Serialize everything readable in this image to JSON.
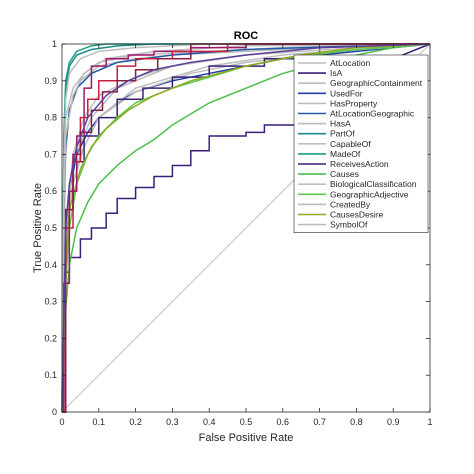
{
  "chart_data": {
    "type": "line",
    "title": "ROC",
    "xlabel": "False Positive Rate",
    "ylabel": "True Positive Rate",
    "xlim": [
      0,
      1
    ],
    "ylim": [
      0,
      1
    ],
    "xticks": [
      "0",
      "0.1",
      "0.2",
      "0.3",
      "0.4",
      "0.5",
      "0.6",
      "0.7",
      "0.8",
      "0.9",
      "1"
    ],
    "yticks": [
      "0",
      "0.1",
      "0.2",
      "0.3",
      "0.4",
      "0.5",
      "0.6",
      "0.7",
      "0.8",
      "0.9",
      "1"
    ],
    "grid": false,
    "legend_position": "top-right",
    "reference_line": {
      "x": [
        0,
        1
      ],
      "y": [
        0,
        1
      ],
      "color": "#c8c8c8"
    },
    "series": [
      {
        "name": "AtLocation",
        "color": "#bdbdbd",
        "x": [
          0,
          0.005,
          0.01,
          0.02,
          0.05,
          0.1,
          0.2,
          0.3,
          0.5,
          0.7,
          1
        ],
        "y": [
          0,
          0.45,
          0.7,
          0.82,
          0.9,
          0.94,
          0.96,
          0.97,
          0.98,
          0.99,
          1
        ]
      },
      {
        "name": "IsA",
        "color": "#3a1f7a",
        "x": [
          0,
          0.005,
          0.005,
          0.02,
          0.02,
          0.05,
          0.05,
          0.08,
          0.08,
          0.12,
          0.12,
          0.15,
          0.15,
          0.2,
          0.2,
          0.25,
          0.25,
          0.3,
          0.3,
          0.35,
          0.35,
          0.4,
          0.4,
          0.5,
          0.5,
          0.55,
          0.55,
          0.65,
          0.65,
          0.75,
          0.75,
          0.82,
          0.82,
          0.9,
          0.9,
          1
        ],
        "y": [
          0,
          0,
          0.38,
          0.38,
          0.42,
          0.42,
          0.47,
          0.47,
          0.5,
          0.5,
          0.54,
          0.54,
          0.58,
          0.58,
          0.61,
          0.61,
          0.64,
          0.64,
          0.67,
          0.67,
          0.71,
          0.71,
          0.75,
          0.75,
          0.76,
          0.76,
          0.78,
          0.78,
          0.8,
          0.8,
          0.81,
          0.81,
          0.87,
          0.87,
          0.96,
          1
        ]
      },
      {
        "name": "GeographicContainment",
        "color": "#bdbdbd",
        "x": [
          0,
          0.005,
          0.01,
          0.03,
          0.06,
          0.1,
          0.2,
          0.4,
          0.6,
          1
        ],
        "y": [
          0,
          0.6,
          0.8,
          0.88,
          0.92,
          0.95,
          0.97,
          0.98,
          0.99,
          1
        ]
      },
      {
        "name": "UsedFor",
        "color": "#1f3fa8",
        "x": [
          0,
          0.01,
          0.02,
          0.04,
          0.07,
          0.1,
          0.15,
          0.2,
          0.3,
          0.4,
          0.5,
          0.6,
          0.8,
          1
        ],
        "y": [
          0,
          0.45,
          0.6,
          0.7,
          0.76,
          0.8,
          0.84,
          0.87,
          0.9,
          0.92,
          0.94,
          0.96,
          0.98,
          1
        ]
      },
      {
        "name": "HasProperty",
        "color": "#bdbdbd",
        "x": [
          0,
          0.01,
          0.03,
          0.06,
          0.1,
          0.2,
          0.3,
          0.5,
          0.7,
          1
        ],
        "y": [
          0,
          0.5,
          0.7,
          0.8,
          0.86,
          0.91,
          0.94,
          0.97,
          0.99,
          1
        ]
      },
      {
        "name": "AtLocationGeographic",
        "color": "#1f5aa8",
        "x": [
          0,
          0.005,
          0.01,
          0.02,
          0.04,
          0.08,
          0.15,
          0.3,
          0.5,
          0.8,
          1
        ],
        "y": [
          0,
          0.55,
          0.72,
          0.82,
          0.88,
          0.92,
          0.95,
          0.97,
          0.985,
          0.995,
          1
        ]
      },
      {
        "name": "HasA",
        "color": "#bdbdbd",
        "x": [
          0,
          0.01,
          0.02,
          0.05,
          0.1,
          0.2,
          0.4,
          0.6,
          1
        ],
        "y": [
          0,
          0.4,
          0.58,
          0.7,
          0.8,
          0.88,
          0.94,
          0.97,
          1
        ]
      },
      {
        "name": "PartOf",
        "color": "#1f8a8a",
        "x": [
          0,
          0.005,
          0.01,
          0.02,
          0.04,
          0.08,
          0.15,
          0.25,
          0.4,
          1
        ],
        "y": [
          0,
          0.7,
          0.88,
          0.94,
          0.97,
          0.985,
          0.995,
          1,
          1,
          1
        ]
      },
      {
        "name": "CapableOf",
        "color": "#bdbdbd",
        "x": [
          0,
          0.01,
          0.03,
          0.06,
          0.1,
          0.2,
          0.35,
          0.5,
          0.75,
          1
        ],
        "y": [
          0,
          0.45,
          0.62,
          0.72,
          0.8,
          0.87,
          0.92,
          0.95,
          0.98,
          1
        ]
      },
      {
        "name": "MadeOf",
        "color": "#1aa085",
        "x": [
          0,
          0.005,
          0.01,
          0.02,
          0.04,
          0.08,
          0.12,
          0.2,
          1
        ],
        "y": [
          0,
          0.75,
          0.9,
          0.95,
          0.98,
          0.995,
          1,
          1,
          1
        ]
      },
      {
        "name": "ReceivesAction",
        "color": "#3a1f7a",
        "x": [
          0,
          0.01,
          0.01,
          0.03,
          0.03,
          0.06,
          0.06,
          0.1,
          0.1,
          0.15,
          0.15,
          0.22,
          0.22,
          0.3,
          0.3,
          0.4,
          0.4,
          0.55,
          0.55,
          0.7,
          0.7,
          1
        ],
        "y": [
          0,
          0,
          0.55,
          0.55,
          0.68,
          0.68,
          0.75,
          0.75,
          0.8,
          0.8,
          0.85,
          0.85,
          0.88,
          0.88,
          0.91,
          0.91,
          0.94,
          0.94,
          0.96,
          0.96,
          0.99,
          1
        ]
      },
      {
        "name": "Causes",
        "color": "#4cbf4a",
        "x": [
          0,
          0.01,
          0.02,
          0.04,
          0.07,
          0.1,
          0.15,
          0.2,
          0.25,
          0.3,
          0.4,
          0.5,
          0.6,
          0.75,
          0.9,
          1
        ],
        "y": [
          0,
          0.28,
          0.4,
          0.5,
          0.57,
          0.62,
          0.67,
          0.71,
          0.74,
          0.78,
          0.84,
          0.88,
          0.92,
          0.96,
          0.99,
          1
        ]
      },
      {
        "name": "BiologicalClassification",
        "color": "#bdbdbd",
        "x": [
          0,
          0.005,
          0.01,
          0.02,
          0.05,
          0.1,
          0.2,
          0.4,
          1
        ],
        "y": [
          0,
          0.65,
          0.85,
          0.92,
          0.96,
          0.98,
          0.99,
          1,
          1
        ]
      },
      {
        "name": "GeographicAdjective",
        "color": "#5cc84a",
        "x": [
          0,
          0.01,
          0.02,
          0.04,
          0.07,
          0.1,
          0.15,
          0.2,
          0.3,
          0.4,
          0.5,
          0.6,
          0.8,
          1
        ],
        "y": [
          0,
          0.35,
          0.5,
          0.62,
          0.7,
          0.75,
          0.8,
          0.84,
          0.88,
          0.91,
          0.94,
          0.96,
          0.985,
          1
        ]
      },
      {
        "name": "CreatedBy",
        "color": "#bdbdbd",
        "x": [
          0,
          0.01,
          0.03,
          0.08,
          0.15,
          0.3,
          0.5,
          0.8,
          1
        ],
        "y": [
          0,
          0.5,
          0.68,
          0.8,
          0.88,
          0.94,
          0.97,
          0.99,
          1
        ]
      },
      {
        "name": "CausesDesire",
        "color": "#8fa820",
        "x": [
          0,
          0.01,
          0.02,
          0.05,
          0.08,
          0.12,
          0.18,
          0.25,
          0.35,
          0.5,
          0.65,
          0.8,
          1
        ],
        "y": [
          0,
          0.4,
          0.55,
          0.66,
          0.72,
          0.77,
          0.82,
          0.86,
          0.9,
          0.94,
          0.97,
          0.99,
          1
        ]
      },
      {
        "name": "SymbolOf",
        "color": "#bdbdbd",
        "x": [
          0,
          0.005,
          0.01,
          0.03,
          0.06,
          0.12,
          0.25,
          0.5,
          1
        ],
        "y": [
          0,
          0.55,
          0.75,
          0.86,
          0.92,
          0.96,
          0.98,
          0.995,
          1
        ]
      },
      {
        "name": "",
        "color": "#a0186b",
        "x": [
          0,
          0.005,
          0.005,
          0.02,
          0.02,
          0.04,
          0.04,
          0.06,
          0.06,
          0.08,
          0.08,
          0.12,
          0.12,
          0.18,
          0.18,
          0.25,
          0.25,
          0.35,
          0.35,
          0.5,
          0.5,
          1
        ],
        "y": [
          0,
          0,
          0.35,
          0.35,
          0.6,
          0.6,
          0.75,
          0.75,
          0.88,
          0.88,
          0.94,
          0.94,
          0.96,
          0.96,
          0.97,
          0.97,
          0.98,
          0.98,
          0.99,
          0.99,
          1,
          1
        ]
      },
      {
        "name": "",
        "color": "#c81e3c",
        "x": [
          0,
          0.01,
          0.01,
          0.03,
          0.03,
          0.05,
          0.05,
          0.07,
          0.07,
          0.1,
          0.1,
          0.15,
          0.15,
          0.2,
          0.2,
          0.3,
          0.3,
          0.45,
          0.45,
          1
        ],
        "y": [
          0,
          0,
          0.5,
          0.5,
          0.68,
          0.68,
          0.8,
          0.8,
          0.85,
          0.85,
          0.9,
          0.9,
          0.94,
          0.94,
          0.96,
          0.96,
          0.98,
          0.98,
          1,
          1
        ]
      },
      {
        "name": "",
        "color": "#8b1e3f",
        "x": [
          0,
          0.01,
          0.01,
          0.03,
          0.03,
          0.05,
          0.05,
          0.08,
          0.08,
          0.11,
          0.11,
          0.15,
          0.15,
          0.2,
          0.2,
          0.26,
          0.26,
          0.35,
          0.35,
          1
        ],
        "y": [
          0,
          0,
          0.55,
          0.55,
          0.7,
          0.7,
          0.76,
          0.76,
          0.82,
          0.82,
          0.87,
          0.87,
          0.9,
          0.9,
          0.93,
          0.93,
          0.96,
          0.96,
          1,
          1
        ]
      },
      {
        "name": "",
        "color": "#5b3f9e",
        "x": [
          0,
          0.01,
          0.02,
          0.04,
          0.07,
          0.12,
          0.18,
          0.25,
          0.35,
          0.5,
          0.7,
          1
        ],
        "y": [
          0,
          0.5,
          0.62,
          0.72,
          0.8,
          0.86,
          0.9,
          0.93,
          0.95,
          0.97,
          0.99,
          1
        ]
      }
    ]
  }
}
